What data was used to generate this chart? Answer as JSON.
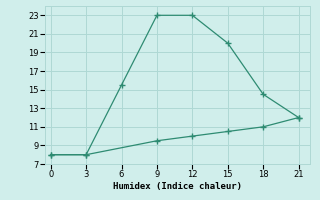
{
  "xlabel": "Humidex (Indice chaleur)",
  "line1_x": [
    0,
    3,
    6,
    9,
    12,
    15,
    18,
    21
  ],
  "line1_y": [
    8,
    8,
    15.5,
    23,
    23,
    20,
    14.5,
    12
  ],
  "line2_x": [
    0,
    3,
    9,
    12,
    15,
    18,
    21
  ],
  "line2_y": [
    8,
    8,
    9.5,
    10,
    10.5,
    11,
    12
  ],
  "line_color": "#2e8b72",
  "bg_color": "#d0eeeb",
  "grid_color": "#aed8d4",
  "xlim": [
    -0.5,
    22
  ],
  "ylim": [
    7,
    24
  ],
  "xticks": [
    0,
    3,
    6,
    9,
    12,
    15,
    18,
    21
  ],
  "yticks": [
    7,
    9,
    11,
    13,
    15,
    17,
    19,
    21,
    23
  ],
  "marker": "+"
}
